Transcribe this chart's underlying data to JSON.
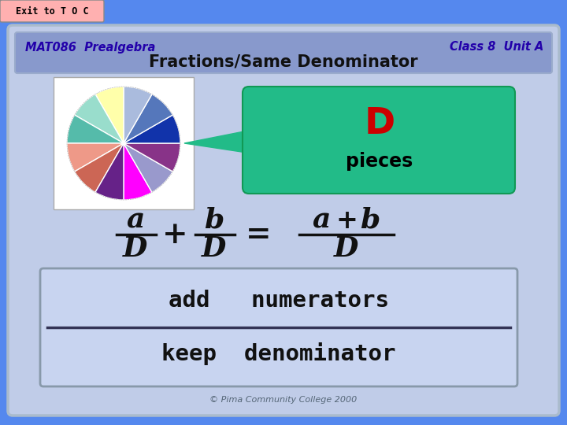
{
  "bg_outer": "#5588ee",
  "bg_main": "#c0cce8",
  "exit_bg": "#ffb0b0",
  "exit_text": "Exit to T O C",
  "exit_text_color": "#000000",
  "header_left": "MAT086  Prealgebra",
  "header_right": "Class 8  Unit A",
  "header_color": "#2200aa",
  "header_bg": "#8899cc",
  "title": "Fractions/Same Denominator",
  "title_color": "#111111",
  "pie_colors": [
    "#ff00ff",
    "#9999cc",
    "#883388",
    "#1133aa",
    "#5577bb",
    "#aabbdd",
    "#ffffaa",
    "#99ddcc",
    "#55bbaa",
    "#ee9988",
    "#cc6655",
    "#662288"
  ],
  "callout_bg": "#22bb88",
  "callout_text_D_color": "#cc0000",
  "callout_text_pieces_color": "#000000",
  "formula_color": "#111111",
  "box_bg": "#c8d4f0",
  "box_edge_color": "#8899aa",
  "add_keep_color": "#111111",
  "copyright": "© Pima Community College 2000",
  "copyright_color": "#556677"
}
